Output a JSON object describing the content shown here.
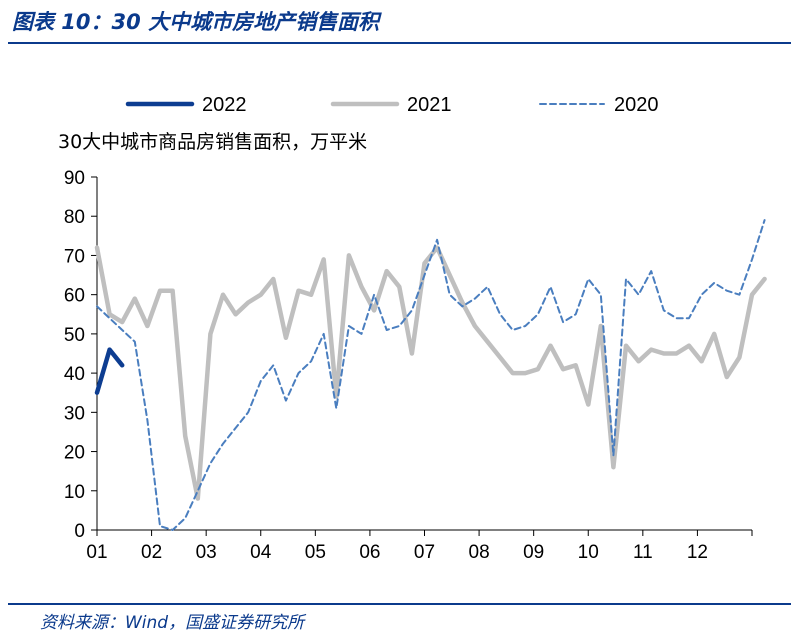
{
  "figure": {
    "title": "图表 10：30 大中城市房地产销售面积",
    "source": "资料来源：Wind，国盛证券研究所"
  },
  "colors": {
    "brand": "#0b3a8c",
    "s2022": "#0d3d91",
    "s2021": "#bfbfbf",
    "s2020": "#4a7ebf"
  },
  "chart_data": {
    "type": "line",
    "ylabel": "30大中城市商品房销售面积，万平米",
    "ylim": [
      0,
      90
    ],
    "yticks": [
      0,
      10,
      20,
      30,
      40,
      50,
      60,
      70,
      80,
      90
    ],
    "xlim": [
      0,
      52
    ],
    "month_ticks": [
      "01",
      "02",
      "03",
      "04",
      "05",
      "06",
      "07",
      "08",
      "09",
      "10",
      "11",
      "12"
    ],
    "legend_position": "top",
    "grid": false,
    "series": [
      {
        "name": "2022",
        "style": "solid-thick",
        "values": [
          35,
          46,
          42
        ]
      },
      {
        "name": "2021",
        "style": "solid",
        "values": [
          72,
          55,
          53,
          59,
          52,
          61,
          61,
          24,
          8,
          50,
          60,
          55,
          58,
          60,
          64,
          49,
          61,
          60,
          69,
          34,
          70,
          62,
          56,
          66,
          62,
          45,
          68,
          72,
          65,
          58,
          52,
          48,
          44,
          40,
          40,
          41,
          47,
          41,
          42,
          32,
          52,
          16,
          47,
          43,
          46,
          45,
          45,
          47,
          43,
          50,
          39,
          44,
          60,
          64
        ]
      },
      {
        "name": "2020",
        "style": "dashed",
        "values": [
          57,
          54,
          51,
          48,
          28,
          1,
          0,
          3,
          10,
          17,
          22,
          26,
          30,
          38,
          42,
          33,
          40,
          43,
          50,
          31,
          52,
          50,
          60,
          51,
          52,
          56,
          65,
          74,
          60,
          57,
          59,
          62,
          55,
          51,
          52,
          55,
          62,
          53,
          55,
          64,
          60,
          19,
          64,
          60,
          66,
          56,
          54,
          54,
          60,
          63,
          61,
          60,
          69,
          79
        ]
      }
    ]
  }
}
